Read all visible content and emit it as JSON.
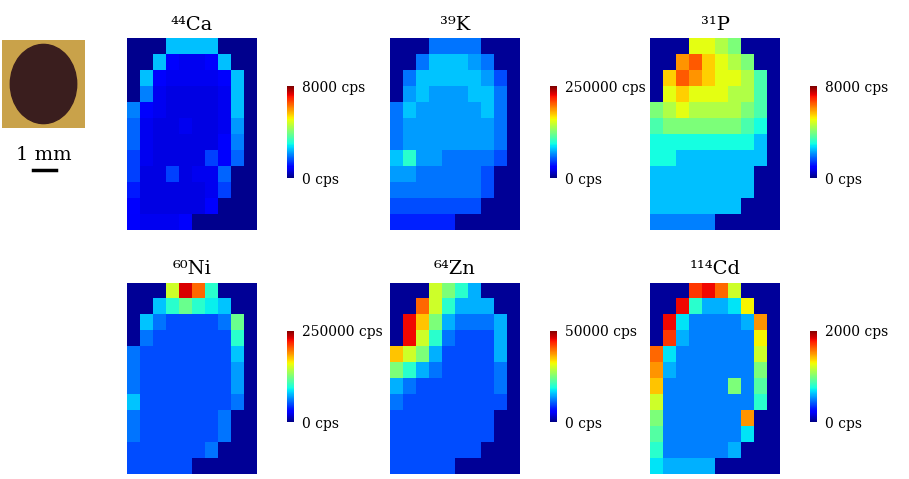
{
  "photo": {
    "scale_bar_label": "1 mm"
  },
  "chart_data": [
    {
      "type": "heatmap",
      "title": "⁴⁴Ca",
      "tick_labels": false,
      "color_range": [
        0,
        8000
      ],
      "color_ticks": [
        {
          "value": 0,
          "label": "0 cps"
        },
        {
          "value": 8000,
          "label": "8000 cps"
        }
      ],
      "cells": [
        [
          100,
          100,
          100,
          2500,
          2500,
          2500,
          2500,
          100,
          100,
          100
        ],
        [
          100,
          100,
          2500,
          900,
          800,
          800,
          900,
          2500,
          100,
          100
        ],
        [
          100,
          2500,
          900,
          800,
          800,
          800,
          800,
          900,
          2500,
          100
        ],
        [
          100,
          2000,
          800,
          700,
          700,
          700,
          700,
          800,
          2500,
          100
        ],
        [
          2000,
          900,
          800,
          700,
          700,
          700,
          700,
          800,
          2500,
          100
        ],
        [
          1800,
          800,
          700,
          700,
          800,
          700,
          700,
          800,
          2200,
          100
        ],
        [
          1800,
          800,
          700,
          700,
          700,
          700,
          700,
          900,
          2000,
          100
        ],
        [
          1500,
          800,
          700,
          700,
          700,
          700,
          1500,
          900,
          1800,
          100
        ],
        [
          1500,
          700,
          700,
          1500,
          700,
          800,
          800,
          1800,
          100,
          100
        ],
        [
          1200,
          700,
          700,
          700,
          700,
          700,
          800,
          1500,
          100,
          100
        ],
        [
          1000,
          700,
          700,
          700,
          700,
          700,
          1000,
          100,
          100,
          100
        ],
        [
          900,
          800,
          800,
          800,
          900,
          100,
          100,
          100,
          100,
          100
        ]
      ]
    },
    {
      "type": "heatmap",
      "title": "³⁹K",
      "tick_labels": false,
      "color_range": [
        0,
        250000
      ],
      "color_ticks": [
        {
          "value": 0,
          "label": "0 cps"
        },
        {
          "value": 250000,
          "label": "250000 cps"
        }
      ],
      "cells": [
        [
          5000,
          5000,
          5000,
          60000,
          60000,
          60000,
          60000,
          5000,
          5000,
          5000
        ],
        [
          5000,
          5000,
          60000,
          80000,
          80000,
          80000,
          70000,
          60000,
          5000,
          5000
        ],
        [
          5000,
          60000,
          80000,
          80000,
          80000,
          80000,
          80000,
          70000,
          50000,
          5000
        ],
        [
          5000,
          70000,
          80000,
          70000,
          70000,
          70000,
          80000,
          80000,
          60000,
          5000
        ],
        [
          60000,
          80000,
          70000,
          70000,
          70000,
          70000,
          70000,
          80000,
          60000,
          5000
        ],
        [
          60000,
          70000,
          70000,
          70000,
          70000,
          70000,
          70000,
          70000,
          60000,
          5000
        ],
        [
          60000,
          70000,
          70000,
          70000,
          70000,
          70000,
          70000,
          70000,
          60000,
          5000
        ],
        [
          80000,
          100000,
          70000,
          70000,
          60000,
          60000,
          60000,
          60000,
          50000,
          5000
        ],
        [
          70000,
          70000,
          60000,
          60000,
          60000,
          60000,
          60000,
          50000,
          5000,
          5000
        ],
        [
          60000,
          60000,
          60000,
          60000,
          60000,
          60000,
          60000,
          50000,
          5000,
          5000
        ],
        [
          50000,
          50000,
          50000,
          50000,
          50000,
          50000,
          50000,
          5000,
          5000,
          5000
        ],
        [
          40000,
          40000,
          40000,
          40000,
          40000,
          5000,
          5000,
          5000,
          5000,
          5000
        ]
      ]
    },
    {
      "type": "heatmap",
      "title": "³¹P",
      "tick_labels": false,
      "color_range": [
        0,
        8000
      ],
      "color_ticks": [
        {
          "value": 0,
          "label": "0 cps"
        },
        {
          "value": 8000,
          "label": "8000 cps"
        }
      ],
      "cells": [
        [
          200,
          200,
          200,
          5000,
          5000,
          4500,
          4000,
          200,
          200,
          200
        ],
        [
          200,
          200,
          6000,
          6500,
          5500,
          5000,
          4500,
          4000,
          200,
          200
        ],
        [
          200,
          5500,
          6500,
          6000,
          5500,
          5000,
          5000,
          4500,
          3500,
          200
        ],
        [
          200,
          5000,
          5500,
          5000,
          5000,
          5000,
          4500,
          4500,
          3500,
          200
        ],
        [
          4000,
          4500,
          5000,
          4500,
          4500,
          4500,
          4500,
          4000,
          3500,
          200
        ],
        [
          3500,
          4000,
          4000,
          4000,
          4000,
          4000,
          4000,
          3500,
          3000,
          200
        ],
        [
          3000,
          3000,
          3000,
          3000,
          3000,
          3000,
          3000,
          3000,
          2500,
          200
        ],
        [
          3000,
          3000,
          2500,
          2500,
          2500,
          2500,
          2500,
          2500,
          2500,
          200
        ],
        [
          2500,
          2500,
          2500,
          2500,
          2500,
          2500,
          2500,
          2500,
          200,
          200
        ],
        [
          2500,
          2500,
          2500,
          2500,
          2500,
          2500,
          2500,
          2500,
          200,
          200
        ],
        [
          2500,
          2500,
          2500,
          2500,
          2500,
          2500,
          2500,
          200,
          200,
          200
        ],
        [
          2000,
          2000,
          2000,
          2000,
          2000,
          200,
          200,
          200,
          200,
          200
        ]
      ]
    },
    {
      "type": "heatmap",
      "title": "⁶⁰Ni",
      "tick_labels": false,
      "color_range": [
        0,
        250000
      ],
      "color_ticks": [
        {
          "value": 0,
          "label": "0 cps"
        },
        {
          "value": 250000,
          "label": "250000 cps"
        }
      ],
      "cells": [
        [
          5000,
          5000,
          5000,
          150000,
          230000,
          200000,
          100000,
          5000,
          5000,
          5000
        ],
        [
          5000,
          5000,
          80000,
          100000,
          120000,
          100000,
          90000,
          80000,
          5000,
          5000
        ],
        [
          5000,
          80000,
          60000,
          50000,
          50000,
          50000,
          50000,
          60000,
          120000,
          5000
        ],
        [
          5000,
          60000,
          50000,
          50000,
          50000,
          50000,
          50000,
          50000,
          100000,
          5000
        ],
        [
          60000,
          50000,
          50000,
          50000,
          50000,
          50000,
          50000,
          50000,
          80000,
          5000
        ],
        [
          60000,
          50000,
          50000,
          50000,
          50000,
          50000,
          50000,
          50000,
          70000,
          5000
        ],
        [
          60000,
          50000,
          50000,
          50000,
          50000,
          50000,
          50000,
          50000,
          70000,
          5000
        ],
        [
          80000,
          50000,
          50000,
          50000,
          50000,
          50000,
          50000,
          50000,
          60000,
          5000
        ],
        [
          60000,
          50000,
          50000,
          50000,
          50000,
          50000,
          50000,
          60000,
          5000,
          5000
        ],
        [
          60000,
          50000,
          50000,
          50000,
          50000,
          50000,
          50000,
          60000,
          5000,
          5000
        ],
        [
          50000,
          50000,
          50000,
          50000,
          50000,
          50000,
          60000,
          5000,
          5000,
          5000
        ],
        [
          50000,
          50000,
          50000,
          50000,
          50000,
          5000,
          5000,
          5000,
          5000,
          5000
        ]
      ]
    },
    {
      "type": "heatmap",
      "title": "⁶⁴Zn",
      "tick_labels": false,
      "color_range": [
        0,
        50000
      ],
      "color_ticks": [
        {
          "value": 0,
          "label": "0 cps"
        },
        {
          "value": 50000,
          "label": "50000 cps"
        }
      ],
      "cells": [
        [
          1000,
          1000,
          1000,
          30000,
          25000,
          20000,
          15000,
          1000,
          1000,
          1000
        ],
        [
          1000,
          1000,
          40000,
          30000,
          20000,
          15000,
          15000,
          15000,
          1000,
          1000
        ],
        [
          1000,
          45000,
          35000,
          25000,
          15000,
          12000,
          12000,
          12000,
          15000,
          1000
        ],
        [
          1000,
          45000,
          30000,
          20000,
          12000,
          10000,
          10000,
          10000,
          15000,
          1000
        ],
        [
          35000,
          30000,
          25000,
          15000,
          10000,
          10000,
          10000,
          10000,
          15000,
          1000
        ],
        [
          25000,
          20000,
          15000,
          12000,
          10000,
          10000,
          10000,
          10000,
          12000,
          1000
        ],
        [
          15000,
          12000,
          10000,
          10000,
          10000,
          10000,
          10000,
          10000,
          12000,
          1000
        ],
        [
          12000,
          10000,
          10000,
          10000,
          10000,
          10000,
          10000,
          10000,
          10000,
          1000
        ],
        [
          10000,
          10000,
          10000,
          10000,
          10000,
          10000,
          10000,
          10000,
          1000,
          1000
        ],
        [
          10000,
          10000,
          10000,
          10000,
          10000,
          10000,
          10000,
          10000,
          1000,
          1000
        ],
        [
          10000,
          10000,
          10000,
          10000,
          10000,
          10000,
          10000,
          1000,
          1000,
          1000
        ],
        [
          10000,
          10000,
          10000,
          10000,
          10000,
          1000,
          1000,
          1000,
          1000,
          1000
        ]
      ]
    },
    {
      "type": "heatmap",
      "title": "¹¹⁴Cd",
      "tick_labels": false,
      "color_range": [
        0,
        2000
      ],
      "color_ticks": [
        {
          "value": 0,
          "label": "0 cps"
        },
        {
          "value": 2000,
          "label": "2000 cps"
        }
      ],
      "cells": [
        [
          50,
          50,
          50,
          1700,
          1800,
          1600,
          1200,
          50,
          50,
          50
        ],
        [
          50,
          50,
          1800,
          800,
          600,
          600,
          700,
          1300,
          50,
          50
        ],
        [
          50,
          1800,
          700,
          500,
          500,
          500,
          500,
          600,
          1500,
          50
        ],
        [
          50,
          1700,
          600,
          500,
          500,
          500,
          500,
          500,
          1300,
          50
        ],
        [
          1600,
          700,
          500,
          500,
          500,
          500,
          500,
          500,
          1200,
          50
        ],
        [
          1500,
          600,
          500,
          500,
          500,
          500,
          500,
          500,
          1000,
          50
        ],
        [
          1400,
          500,
          500,
          500,
          500,
          500,
          1000,
          500,
          900,
          50
        ],
        [
          1200,
          500,
          500,
          500,
          500,
          500,
          500,
          500,
          800,
          50
        ],
        [
          1000,
          500,
          500,
          500,
          500,
          500,
          500,
          1500,
          50,
          50
        ],
        [
          900,
          500,
          500,
          500,
          500,
          500,
          500,
          700,
          50,
          50
        ],
        [
          800,
          500,
          500,
          500,
          500,
          500,
          600,
          50,
          50,
          50
        ],
        [
          700,
          600,
          600,
          600,
          600,
          50,
          50,
          50,
          50,
          50
        ]
      ]
    }
  ]
}
